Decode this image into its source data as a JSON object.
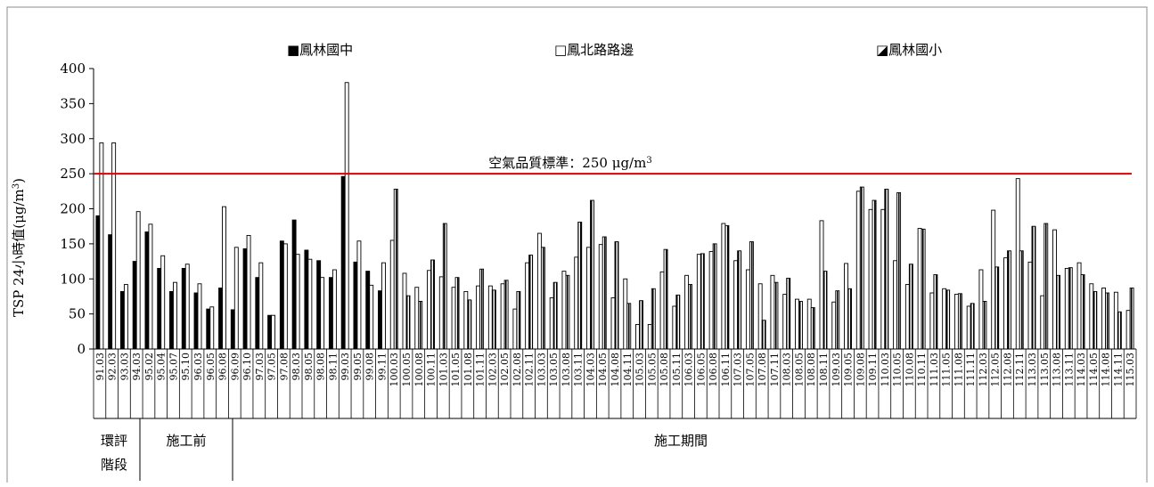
{
  "chart_data": {
    "type": "bar",
    "ylabel": "TSP 24小時值(μg/m3)",
    "ylabel_main": "TSP 24小時值(μg/m",
    "ylabel_sup": "3",
    "ylabel_tail": ")",
    "ylim": [
      0,
      400
    ],
    "yticks": [
      0,
      50,
      100,
      150,
      200,
      250,
      300,
      350,
      400
    ],
    "grid": false,
    "legend_position": "top",
    "series": [
      {
        "name": "鳳林國中",
        "legend_label": "■鳳林國中",
        "style": "solid",
        "color": "#000000"
      },
      {
        "name": "鳳北路路邊",
        "legend_label": "□鳳北路路邊",
        "style": "hollow",
        "color": "#000000"
      },
      {
        "name": "鳳林國小",
        "legend_label": "◪鳳林國小",
        "style": "half",
        "color": "#000000"
      }
    ],
    "standard_line": {
      "value": 250,
      "label_main": "空氣品質標準：250 μg/m",
      "label_sup": "3",
      "color": "#e00000"
    },
    "phases": [
      {
        "label": "環評階段",
        "label_line1": "環評",
        "label_line2": "階段",
        "periods": 5
      },
      {
        "label": "施工前",
        "periods": 8
      },
      {
        "label": "施工期間",
        "periods": 72
      }
    ],
    "categories": [
      "91.03",
      "92.03",
      "93.03",
      "94.03",
      "95.02",
      "95.04",
      "95.07",
      "95.10",
      "96.03",
      "96.05",
      "96.08",
      "96.09",
      "96.10",
      "97.03",
      "97.05",
      "97.08",
      "98.03",
      "98.05",
      "98.08",
      "98.11",
      "99.03",
      "99.05",
      "99.08",
      "99.11",
      "100.03",
      "100.05",
      "100.08",
      "100.11",
      "101.03",
      "101.05",
      "101.08",
      "101.11",
      "102.03",
      "102.05",
      "102.08",
      "102.11",
      "103.03",
      "103.05",
      "103.08",
      "103.11",
      "104.03",
      "104.05",
      "104.08",
      "104.11",
      "105.03",
      "105.05",
      "105.08",
      "105.11",
      "106.03",
      "106.05",
      "106.08",
      "106.11",
      "107.03",
      "107.05",
      "107.08",
      "107.11",
      "108.03",
      "108.05",
      "108.08",
      "108.11",
      "109.03",
      "109.05",
      "109.08",
      "109.11",
      "110.03",
      "110.05",
      "110.08",
      "110.11",
      "111.03",
      "111.05",
      "111.08",
      "111.11",
      "112.03",
      "112.05",
      "112.08",
      "112.11",
      "113.03",
      "113.05",
      "113.08",
      "113.11",
      "114.03",
      "114.05",
      "114.08",
      "114.11",
      "115.03"
    ],
    "values": [
      [
        190,
        294,
        null
      ],
      [
        163,
        294,
        null
      ],
      [
        82,
        92,
        null
      ],
      [
        125,
        196,
        null
      ],
      [
        167,
        178,
        null
      ],
      [
        115,
        133,
        null
      ],
      [
        82,
        95,
        null
      ],
      [
        115,
        121,
        null
      ],
      [
        80,
        93,
        null
      ],
      [
        57,
        60,
        null
      ],
      [
        87,
        203,
        null
      ],
      [
        56,
        145,
        null
      ],
      [
        143,
        162,
        null
      ],
      [
        102,
        123,
        null
      ],
      [
        48,
        48,
        null
      ],
      [
        154,
        150,
        null
      ],
      [
        184,
        135,
        null
      ],
      [
        141,
        128,
        null
      ],
      [
        126,
        102,
        null
      ],
      [
        102,
        113,
        null
      ],
      [
        246,
        380,
        null
      ],
      [
        124,
        154,
        null
      ],
      [
        111,
        91,
        null
      ],
      [
        83,
        123,
        null
      ],
      [
        null,
        155,
        228
      ],
      [
        null,
        108,
        76
      ],
      [
        null,
        88,
        68
      ],
      [
        null,
        112,
        127
      ],
      [
        null,
        103,
        179
      ],
      [
        null,
        88,
        102
      ],
      [
        null,
        82,
        70
      ],
      [
        null,
        90,
        114
      ],
      [
        null,
        90,
        84
      ],
      [
        null,
        93,
        98
      ],
      [
        null,
        57,
        82
      ],
      [
        null,
        123,
        134
      ],
      [
        null,
        165,
        145
      ],
      [
        null,
        73,
        95
      ],
      [
        null,
        111,
        105
      ],
      [
        null,
        131,
        181
      ],
      [
        null,
        145,
        212
      ],
      [
        null,
        149,
        160
      ],
      [
        null,
        73,
        153
      ],
      [
        null,
        100,
        65
      ],
      [
        null,
        35,
        69
      ],
      [
        null,
        35,
        86
      ],
      [
        null,
        110,
        142
      ],
      [
        null,
        61,
        77
      ],
      [
        null,
        105,
        92
      ],
      [
        null,
        135,
        136
      ],
      [
        null,
        139,
        150
      ],
      [
        null,
        179,
        176
      ],
      [
        null,
        126,
        140
      ],
      [
        null,
        113,
        153
      ],
      [
        null,
        93,
        41
      ],
      [
        null,
        105,
        95
      ],
      [
        null,
        78,
        101
      ],
      [
        null,
        71,
        68
      ],
      [
        null,
        71,
        59
      ],
      [
        null,
        183,
        111
      ],
      [
        null,
        67,
        83
      ],
      [
        null,
        122,
        86
      ],
      [
        null,
        225,
        231
      ],
      [
        null,
        199,
        212
      ],
      [
        null,
        199,
        228
      ],
      [
        null,
        126,
        223
      ],
      [
        null,
        92,
        121
      ],
      [
        null,
        172,
        171
      ],
      [
        null,
        80,
        106
      ],
      [
        null,
        86,
        84
      ],
      [
        null,
        78,
        79
      ],
      [
        null,
        61,
        65
      ],
      [
        null,
        113,
        68
      ],
      [
        null,
        198,
        117
      ],
      [
        null,
        130,
        140
      ],
      [
        null,
        243,
        140
      ],
      [
        null,
        124,
        175
      ],
      [
        null,
        76,
        179
      ],
      [
        null,
        170,
        105
      ],
      [
        null,
        115,
        116
      ],
      [
        null,
        123,
        106
      ],
      [
        null,
        93,
        82
      ],
      [
        null,
        87,
        80
      ],
      [
        null,
        81,
        53
      ],
      [
        null,
        55,
        87
      ]
    ]
  }
}
